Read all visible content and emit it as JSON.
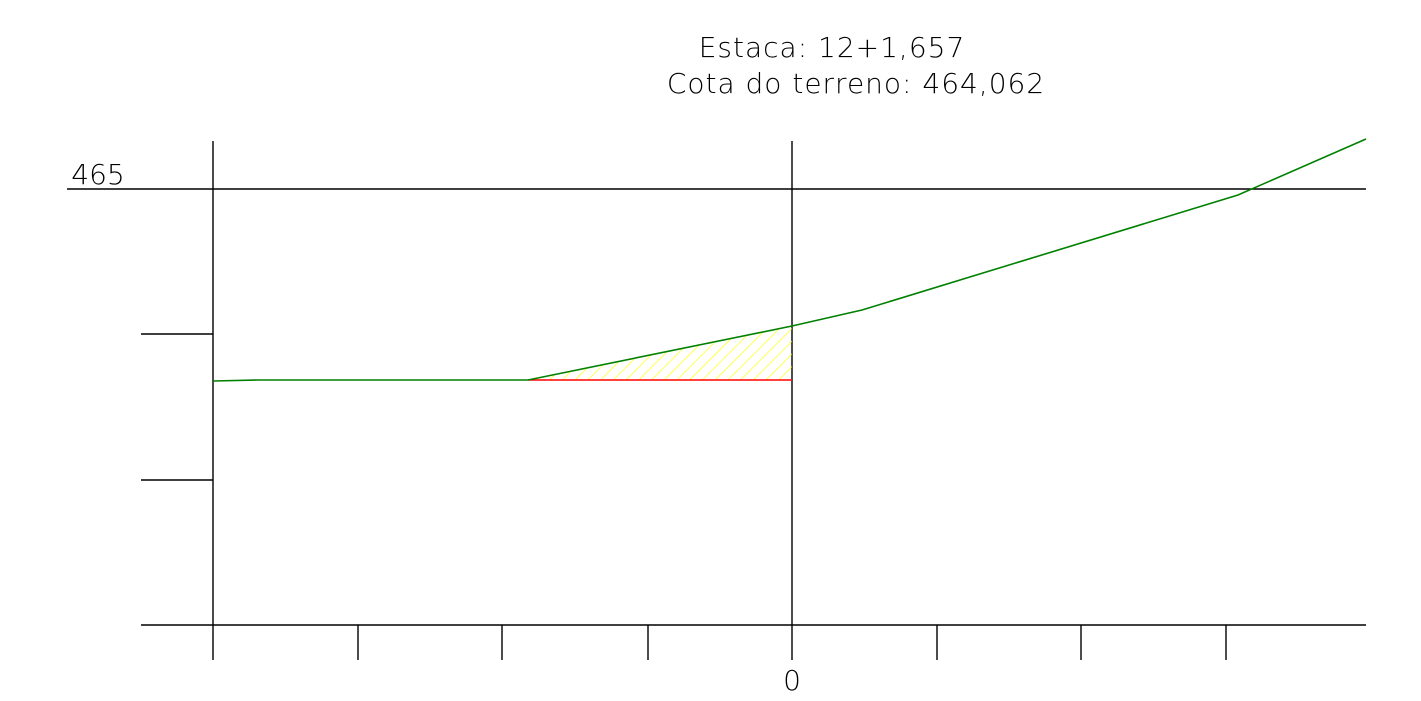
{
  "header": {
    "station_line": "Estaca: 12+1,657",
    "ground_elevation_line": "Cota do terreno: 464,062"
  },
  "axes": {
    "top_elevation_label": "465",
    "center_offset_label": "0"
  },
  "colors": {
    "grid": "#000000",
    "terrain": "#008000",
    "platform": "#ff0000",
    "cut_hatch": "#ffff00",
    "background": "#ffffff"
  }
}
